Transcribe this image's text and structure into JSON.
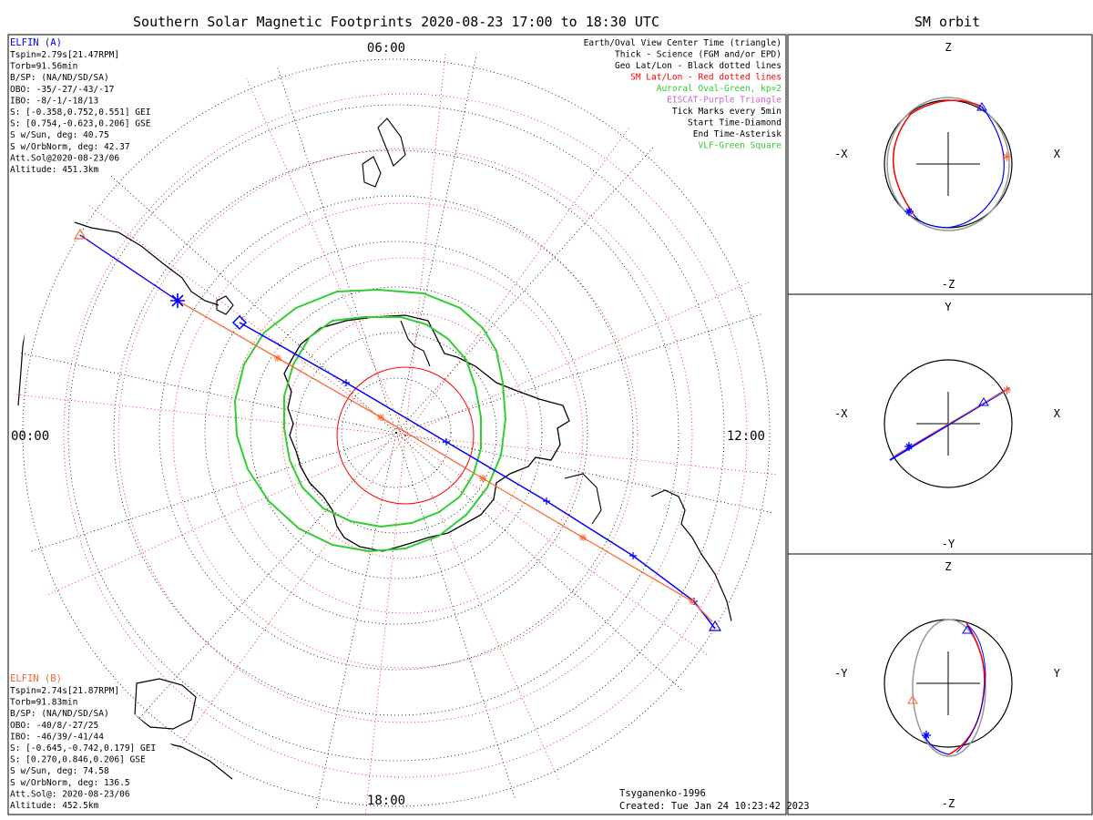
{
  "title": "Southern Solar Magnetic Footprints 2020-08-23 17:00 to 18:30 UTC",
  "side_title": "SM orbit",
  "time_labels": {
    "top": "06:00",
    "left": "00:00",
    "right": "12:00",
    "bottom": "18:00"
  },
  "legend": [
    {
      "text": "Earth/Oval View Center Time (triangle)",
      "color": "#000000"
    },
    {
      "text": "Thick - Science (FGM and/or EPD)",
      "color": "#000000"
    },
    {
      "text": "Geo Lat/Lon - Black dotted lines",
      "color": "#000000"
    },
    {
      "text": "SM Lat/Lon - Red dotted lines",
      "color": "#ff0000"
    },
    {
      "text": "Auroral Oval-Green, kp=2",
      "color": "#33cc33"
    },
    {
      "text": "EISCAT-Purple Triangle",
      "color": "#cc66cc"
    },
    {
      "text": "Tick Marks every 5min",
      "color": "#000000"
    },
    {
      "text": "Start Time-Diamond",
      "color": "#000000"
    },
    {
      "text": "End Time-Asterisk",
      "color": "#000000"
    },
    {
      "text": "VLF-Green Square",
      "color": "#33cc33"
    }
  ],
  "info_a": {
    "name": "ELFIN (A)",
    "color": "#0000ff",
    "lines": [
      "Tspin=2.79s[21.47RPM]",
      "Torb=91.56min",
      "B/SP: (NA/ND/SD/SA)",
      "OBO: -35/-27/-43/-17",
      "IBO: -8/-1/-18/13",
      "S: [-0.358,0.752,0.551] GEI",
      "S: [0.754,-0.623,0.206] GSE",
      "S w/Sun, deg: 40.75",
      "S w/OrbNorm, deg: 42.37",
      "Att.Sol@2020-08-23/06",
      "Altitude: 451.3km"
    ]
  },
  "info_b": {
    "name": "ELFIN (B)",
    "color": "#ff6633",
    "lines": [
      "Tspin=2.74s[21.87RPM]",
      "Torb=91.83min",
      "B/SP: (NA/ND/SD/SA)",
      "OBO: -40/8/-27/25",
      "IBO: -46/39/-41/44",
      "S: [-0.645,-0.742,0.179] GEI",
      "S: [0.270,0.846,0.206] GSE",
      "S w/Sun, deg: 74.58",
      "S w/OrbNorm, deg: 136.5",
      "Att.Sol@: 2020-08-23/06",
      "Altitude: 452.5km"
    ]
  },
  "footer": {
    "model": "Tsyganenko-1996",
    "created": "Created: Tue Jan 24 10:23:42 2023"
  },
  "orbit_panels": [
    {
      "h_left": "-X",
      "h_right": "X",
      "v_top": "Z",
      "v_bottom": "-Z"
    },
    {
      "h_left": "-X",
      "h_right": "X",
      "v_top": "Y",
      "v_bottom": "-Y"
    },
    {
      "h_left": "-Y",
      "h_right": "Y",
      "v_top": "Z",
      "v_bottom": "-Z"
    }
  ],
  "colors": {
    "elfin_a": "#0000ff",
    "elfin_b": "#ff6633",
    "auroral_oval": "#33cc33",
    "sm_grid": "#ff0000",
    "geo_grid": "#000000"
  },
  "chart_data": {
    "type": "polar-map",
    "title": "Southern Solar Magnetic Footprints 2020-08-23 17:00 to 18:30 UTC",
    "projection": "south polar, solar magnetic local time",
    "local_time_labels": [
      "00:00",
      "06:00",
      "12:00",
      "18:00"
    ],
    "auroral_oval_kp": 2,
    "tick_interval_min": 5,
    "series": [
      {
        "name": "ELFIN (A)",
        "color": "#0000ff"
      },
      {
        "name": "ELFIN (B)",
        "color": "#ff6633"
      }
    ]
  }
}
